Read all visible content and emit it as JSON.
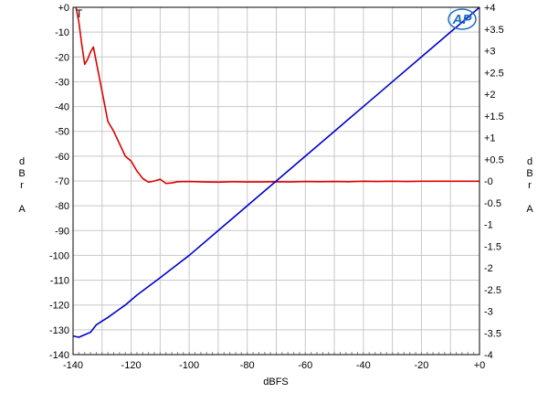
{
  "chart_data": {
    "type": "line",
    "title": "",
    "marker": "T",
    "logo": "AP",
    "xlabel": "dBFS",
    "ylabel_left": [
      "d",
      "B",
      "r",
      "",
      "A"
    ],
    "ylabel_right": [
      "d",
      "B",
      "r",
      "",
      "A"
    ],
    "xlim": [
      -140,
      0
    ],
    "ylim_left": [
      -140,
      0
    ],
    "ylim_right": [
      -4,
      4
    ],
    "grid": true,
    "x_ticks": [
      -140,
      -120,
      -100,
      -80,
      -60,
      -40,
      -20,
      0
    ],
    "x_tick_labels": [
      "-140",
      "-120",
      "-100",
      "-80",
      "-60",
      "-40",
      "-20",
      "+0"
    ],
    "y_left_ticks": [
      0,
      -10,
      -20,
      -30,
      -40,
      -50,
      -60,
      -70,
      -80,
      -90,
      -100,
      -110,
      -120,
      -130,
      -140
    ],
    "y_left_tick_labels": [
      "+0",
      "-10",
      "-20",
      "-30",
      "-40",
      "-50",
      "-60",
      "-70",
      "-80",
      "-90",
      "-100",
      "-110",
      "-120",
      "-130",
      "-140"
    ],
    "y_right_ticks": [
      4,
      3.5,
      3,
      2.5,
      2,
      1.5,
      1,
      0.5,
      0,
      -0.5,
      -1,
      -1.5,
      -2,
      -2.5,
      -3,
      -3.5,
      -4
    ],
    "y_right_tick_labels": [
      "+4",
      "+3.5",
      "+3",
      "+2.5",
      "+2",
      "+1.5",
      "+1",
      "+0.5",
      "-0",
      "-0.5",
      "-1",
      "-1.5",
      "-2",
      "-2.5",
      "-3",
      "-3.5",
      "-4"
    ],
    "series": [
      {
        "axis": "left",
        "color": "#e00000",
        "points": [
          [
            -139,
            0
          ],
          [
            -138,
            -6
          ],
          [
            -137,
            -15
          ],
          [
            -136,
            -23
          ],
          [
            -135,
            -21
          ],
          [
            -134,
            -18
          ],
          [
            -133,
            -16
          ],
          [
            -132,
            -22
          ],
          [
            -131,
            -28
          ],
          [
            -130,
            -34
          ],
          [
            -129,
            -40
          ],
          [
            -128,
            -46
          ],
          [
            -126,
            -50
          ],
          [
            -124,
            -55
          ],
          [
            -122,
            -60
          ],
          [
            -120,
            -62
          ],
          [
            -118,
            -66
          ],
          [
            -116,
            -69
          ],
          [
            -114,
            -70.5
          ],
          [
            -112,
            -70
          ],
          [
            -110,
            -69.3
          ],
          [
            -108,
            -71
          ],
          [
            -106,
            -70.8
          ],
          [
            -104,
            -70.3
          ],
          [
            -100,
            -70.2
          ],
          [
            -95,
            -70.4
          ],
          [
            -90,
            -70.5
          ],
          [
            -85,
            -70.3
          ],
          [
            -80,
            -70.4
          ],
          [
            -75,
            -70.4
          ],
          [
            -70,
            -70.3
          ],
          [
            -65,
            -70.4
          ],
          [
            -60,
            -70.2
          ],
          [
            -55,
            -70.3
          ],
          [
            -50,
            -70.2
          ],
          [
            -45,
            -70.3
          ],
          [
            -40,
            -70.1
          ],
          [
            -35,
            -70.2
          ],
          [
            -30,
            -70.1
          ],
          [
            -25,
            -70.2
          ],
          [
            -20,
            -70.1
          ],
          [
            -15,
            -70.1
          ],
          [
            -10,
            -70.1
          ],
          [
            -5,
            -70.1
          ],
          [
            0,
            -70.1
          ]
        ]
      },
      {
        "axis": "left",
        "color": "#0000cc",
        "points": [
          [
            -140,
            -132.5
          ],
          [
            -138,
            -133
          ],
          [
            -136,
            -132
          ],
          [
            -134,
            -131
          ],
          [
            -132,
            -128
          ],
          [
            -130,
            -126.5
          ],
          [
            -128,
            -125
          ],
          [
            -125,
            -122.5
          ],
          [
            -122,
            -120
          ],
          [
            -118,
            -116
          ],
          [
            -114,
            -112.5
          ],
          [
            -110,
            -109
          ],
          [
            -105,
            -104.5
          ],
          [
            -100,
            -100
          ],
          [
            -90,
            -90
          ],
          [
            -80,
            -80
          ],
          [
            -70,
            -70
          ],
          [
            -60,
            -60
          ],
          [
            -50,
            -50
          ],
          [
            -40,
            -40
          ],
          [
            -30,
            -30
          ],
          [
            -20,
            -20
          ],
          [
            -10,
            -10
          ],
          [
            0,
            0
          ]
        ]
      }
    ]
  }
}
